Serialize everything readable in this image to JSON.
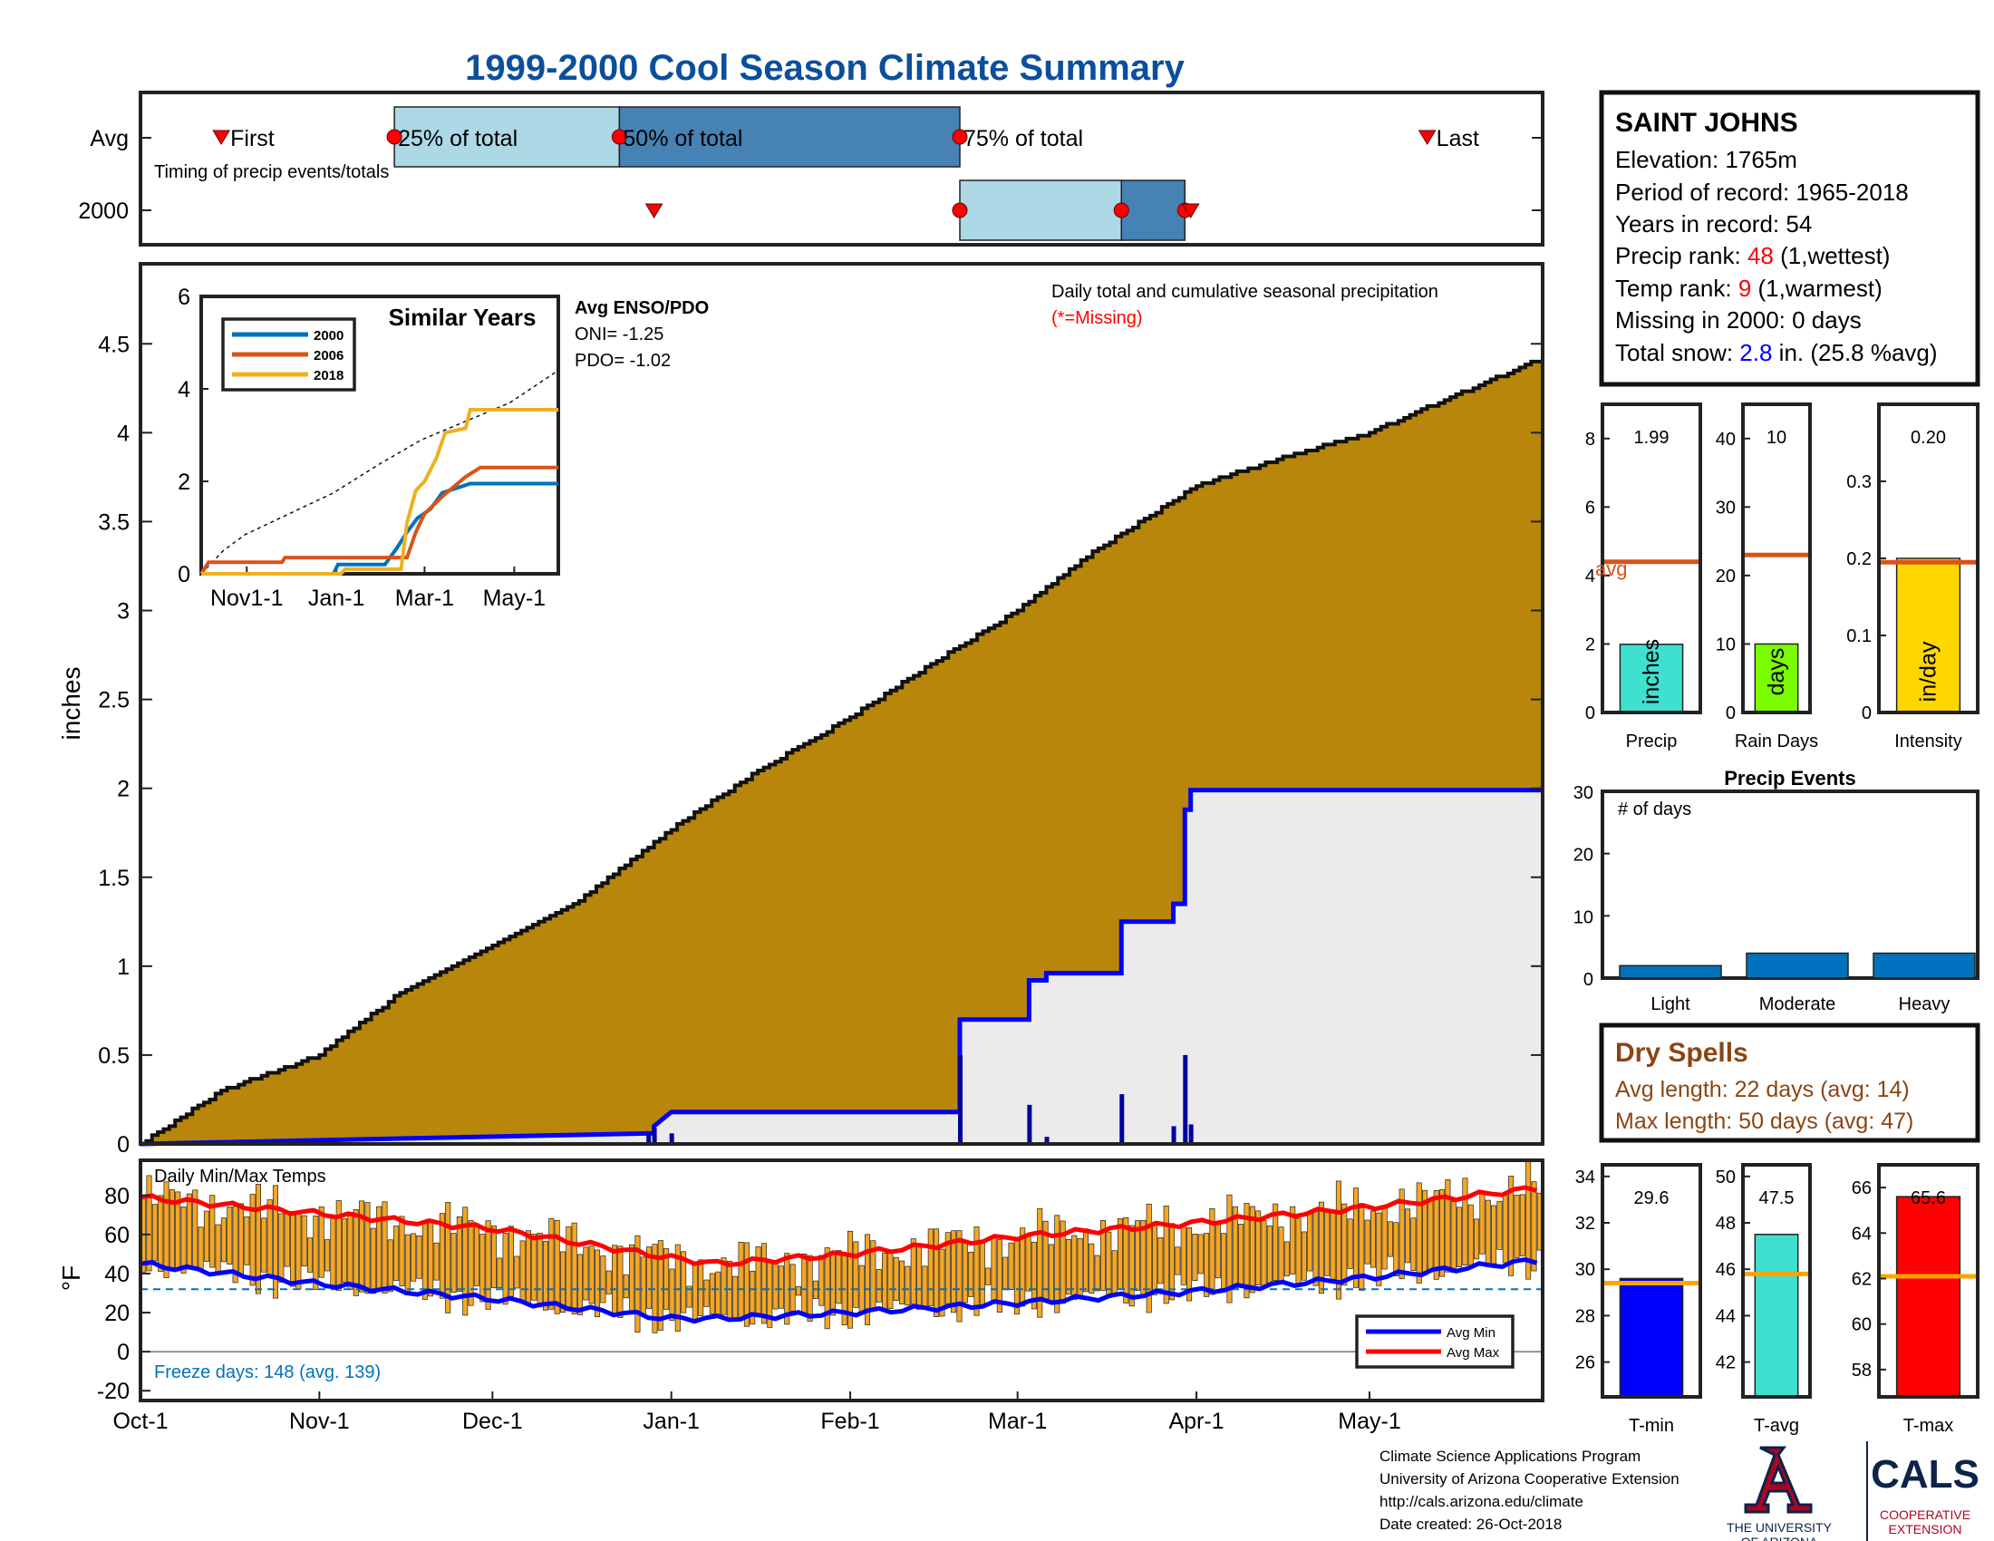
{
  "title": "1999-2000 Cool Season Climate Summary",
  "timing": {
    "row_labels": [
      "Avg",
      "2000"
    ],
    "caption": "Timing of precip events/totals",
    "marker_labels": [
      "First",
      "25% of total",
      "50% of total",
      "75% of total",
      "Last"
    ],
    "avg": {
      "first": "1999-10-15",
      "p25": "1999-11-14",
      "p50": "1999-12-23",
      "p75": "2000-02-20",
      "last": "2000-05-11"
    },
    "y2000": {
      "first": "1999-12-29",
      "p25": "2000-02-20",
      "p50": "2000-03-19",
      "p75": "2000-03-30",
      "last": "2000-03-31"
    }
  },
  "precip": {
    "ylabel": "inches",
    "yticks": [
      "0",
      "0.5",
      "1",
      "1.5",
      "2",
      "2.5",
      "3",
      "3.5",
      "4",
      "4.5"
    ],
    "ylim": [
      0,
      4.95
    ],
    "caption": "Daily total and cumulative seasonal precipitation",
    "missing_note": "(*=Missing)",
    "enso_title": "Avg ENSO/PDO",
    "oni": "ONI= -1.25",
    "pdo": "PDO= -1.02",
    "avg_cumulative": [
      [
        "1999-10-01",
        0.0
      ],
      [
        "1999-10-15",
        0.3
      ],
      [
        "1999-11-01",
        0.5
      ],
      [
        "1999-11-15",
        0.85
      ],
      [
        "1999-12-01",
        1.12
      ],
      [
        "1999-12-15",
        1.35
      ],
      [
        "2000-01-01",
        1.77
      ],
      [
        "2000-01-15",
        2.08
      ],
      [
        "2000-02-01",
        2.4
      ],
      [
        "2000-02-15",
        2.7
      ],
      [
        "2000-03-01",
        3.0
      ],
      [
        "2000-03-15",
        3.35
      ],
      [
        "2000-04-01",
        3.7
      ],
      [
        "2000-04-15",
        3.85
      ],
      [
        "2000-05-01",
        4.0
      ],
      [
        "2000-05-15",
        4.2
      ],
      [
        "2000-05-31",
        4.42
      ]
    ],
    "daily_2000": [
      [
        "1999-12-28",
        0.06
      ],
      [
        "1999-12-29",
        0.09
      ],
      [
        "2000-01-01",
        0.06
      ],
      [
        "2000-02-20",
        0.5
      ],
      [
        "2000-03-03",
        0.22
      ],
      [
        "2000-03-06",
        0.04
      ],
      [
        "2000-03-19",
        0.28
      ],
      [
        "2000-03-28",
        0.1
      ],
      [
        "2000-03-30",
        0.5
      ],
      [
        "2000-03-31",
        0.11
      ]
    ],
    "cumulative_2000": [
      [
        "1999-10-01",
        0.0
      ],
      [
        "1999-12-29",
        0.06
      ],
      [
        "1999-12-29",
        0.1
      ],
      [
        "2000-01-01",
        0.18
      ],
      [
        "2000-02-20",
        0.18
      ],
      [
        "2000-02-20",
        0.7
      ],
      [
        "2000-03-03",
        0.7
      ],
      [
        "2000-03-03",
        0.92
      ],
      [
        "2000-03-06",
        0.92
      ],
      [
        "2000-03-06",
        0.96
      ],
      [
        "2000-03-19",
        0.96
      ],
      [
        "2000-03-19",
        1.25
      ],
      [
        "2000-03-28",
        1.25
      ],
      [
        "2000-03-28",
        1.35
      ],
      [
        "2000-03-30",
        1.35
      ],
      [
        "2000-03-30",
        1.88
      ],
      [
        "2000-03-31",
        1.88
      ],
      [
        "2000-03-31",
        1.99
      ],
      [
        "2000-05-31",
        1.99
      ]
    ]
  },
  "similar": {
    "title": "Similar Years",
    "yticks": [
      "0",
      "2",
      "4",
      "6"
    ],
    "ylim": [
      0,
      6
    ],
    "xticks": [
      "Nov1-1",
      "Jan-1",
      "Mar-1",
      "May-1"
    ],
    "legend": [
      "2000",
      "2006",
      "2018"
    ],
    "colors": [
      "#0072BD",
      "#D95319",
      "#EDB120"
    ],
    "avg_line": [
      [
        0,
        0
      ],
      [
        15,
        0.5
      ],
      [
        30,
        0.85
      ],
      [
        60,
        1.3
      ],
      [
        90,
        1.75
      ],
      [
        120,
        2.35
      ],
      [
        150,
        2.9
      ],
      [
        180,
        3.3
      ],
      [
        210,
        3.7
      ],
      [
        243,
        4.4
      ]
    ],
    "series": [
      [
        [
          0,
          0
        ],
        [
          90,
          0
        ],
        [
          93,
          0.2
        ],
        [
          125,
          0.2
        ],
        [
          133,
          0.55
        ],
        [
          140,
          0.9
        ],
        [
          147,
          1.2
        ],
        [
          156,
          1.4
        ],
        [
          164,
          1.75
        ],
        [
          183,
          1.95
        ],
        [
          243,
          1.95
        ]
      ],
      [
        [
          0,
          0
        ],
        [
          5,
          0.25
        ],
        [
          55,
          0.25
        ],
        [
          57,
          0.35
        ],
        [
          140,
          0.35
        ],
        [
          146,
          0.9
        ],
        [
          152,
          1.3
        ],
        [
          165,
          1.7
        ],
        [
          180,
          2.1
        ],
        [
          190,
          2.3
        ],
        [
          243,
          2.3
        ]
      ],
      [
        [
          0,
          0
        ],
        [
          95,
          0
        ],
        [
          98,
          0.1
        ],
        [
          136,
          0.1
        ],
        [
          140,
          1.1
        ],
        [
          146,
          1.8
        ],
        [
          152,
          2.0
        ],
        [
          160,
          2.5
        ],
        [
          166,
          3.05
        ],
        [
          180,
          3.15
        ],
        [
          183,
          3.55
        ],
        [
          243,
          3.55
        ]
      ]
    ]
  },
  "temps": {
    "caption": "Daily Min/Max Temps",
    "ylabel": "°F",
    "yticks": [
      "-20",
      "0",
      "20",
      "40",
      "60",
      "80"
    ],
    "ylim": [
      -25,
      98
    ],
    "freeze": "Freeze days: 148 (avg. 139)",
    "legend": [
      "Avg Min",
      "Avg Max"
    ],
    "freeze_line": 32,
    "avg_max": [
      [
        0,
        79
      ],
      [
        30,
        71
      ],
      [
        61,
        63
      ],
      [
        92,
        48
      ],
      [
        100,
        45
      ],
      [
        123,
        50
      ],
      [
        152,
        59
      ],
      [
        183,
        66
      ],
      [
        213,
        74
      ],
      [
        243,
        84
      ]
    ],
    "avg_min": [
      [
        0,
        45
      ],
      [
        30,
        35
      ],
      [
        61,
        27
      ],
      [
        92,
        17
      ],
      [
        100,
        17
      ],
      [
        123,
        20
      ],
      [
        152,
        25
      ],
      [
        183,
        31
      ],
      [
        213,
        38
      ],
      [
        243,
        47
      ]
    ],
    "amplitude": 14
  },
  "xaxis": {
    "start": "1999-10-01",
    "end": "2000-05-31",
    "labels": [
      "Oct-1",
      "Nov-1",
      "Dec-1",
      "Jan-1",
      "Feb-1",
      "Mar-1",
      "Apr-1",
      "May-1"
    ],
    "dates": [
      "1999-10-01",
      "1999-11-01",
      "1999-12-01",
      "2000-01-01",
      "2000-02-01",
      "2000-03-01",
      "2000-04-01",
      "2000-05-01"
    ]
  },
  "station": {
    "name": "SAINT JOHNS",
    "elevation": "Elevation: 1765m",
    "period": "Period of record: 1965-2018",
    "years": "Years in record: 54",
    "precip_rank_label": "Precip rank: ",
    "precip_rank": "48",
    "precip_rank_suffix": " (1,wettest)",
    "temp_rank_label": "Temp rank: ",
    "temp_rank": "9",
    "temp_rank_suffix": " (1,warmest)",
    "missing": "Missing in 2000: 0 days",
    "snow_label": "Total snow: ",
    "snow_value": "2.8",
    "snow_suffix": " in. (25.8 %avg)"
  },
  "summary_bars": [
    {
      "label": "Precip",
      "value": 1.99,
      "value_text": "1.99",
      "avg": 4.4,
      "avg_label": "avg",
      "ylim": [
        0,
        9
      ],
      "yticks": [
        0,
        2,
        4,
        6,
        8
      ],
      "tick_labels": [
        "0",
        "2",
        "4",
        "6",
        "8"
      ],
      "color": "#40E0D0",
      "unit": "inches"
    },
    {
      "label": "Rain Days",
      "value": 10,
      "value_text": "10",
      "avg": 23,
      "ylim": [
        0,
        45
      ],
      "yticks": [
        0,
        10,
        20,
        30,
        40
      ],
      "tick_labels": [
        "0",
        "10",
        "20",
        "30",
        "40"
      ],
      "color": "#7CFC00",
      "unit": "days"
    },
    {
      "label": "Intensity",
      "value": 0.2,
      "value_text": "0.20",
      "avg": 0.195,
      "ylim": [
        0,
        0.4
      ],
      "yticks": [
        0,
        0.1,
        0.2,
        0.3
      ],
      "tick_labels": [
        "0",
        "0.1",
        "0.2",
        "0.3"
      ],
      "color": "#FFD700",
      "unit": "in/day"
    }
  ],
  "precip_events": {
    "title": "Precip Events",
    "ylabel_inside": "# of days",
    "categories": [
      "Light",
      "Moderate",
      "Heavy"
    ],
    "values": [
      2,
      4,
      4
    ],
    "ylim": [
      0,
      30
    ],
    "yticks": [
      "0",
      "10",
      "20",
      "30"
    ],
    "color": "#0072BD"
  },
  "dry_spells": {
    "title": "Dry Spells",
    "avg_length": "Avg length: 22 days (avg: 14)",
    "max_length": "Max length: 50 days (avg: 47)"
  },
  "temp_bars": [
    {
      "label": "T-min",
      "value": 29.6,
      "value_text": "29.6",
      "avg": 29.4,
      "ylim": [
        24.5,
        34.5
      ],
      "yticks": [
        26,
        28,
        30,
        32,
        34
      ],
      "tick_labels": [
        "26",
        "28",
        "30",
        "32",
        "34"
      ],
      "color": "#0000FF"
    },
    {
      "label": "T-avg",
      "value": 47.5,
      "value_text": "47.5",
      "avg": 45.8,
      "ylim": [
        40.5,
        50.5
      ],
      "yticks": [
        42,
        44,
        46,
        48,
        50
      ],
      "tick_labels": [
        "42",
        "44",
        "46",
        "48",
        "50"
      ],
      "color": "#40E0D0"
    },
    {
      "label": "T-max",
      "value": 65.6,
      "value_text": "65.6",
      "avg": 62.1,
      "ylim": [
        56.8,
        67
      ],
      "yticks": [
        58,
        60,
        62,
        64,
        66
      ],
      "tick_labels": [
        "58",
        "60",
        "62",
        "64",
        "66"
      ],
      "color": "#FF0000"
    }
  ],
  "credits": [
    "Climate Science Applications Program",
    "University of Arizona Cooperative Extension",
    "http://cals.arizona.edu/climate",
    " Date created: 26-Oct-2018"
  ],
  "logo": {
    "ua_line1": "THE UNIVERSITY",
    "ua_line2": "OF ARIZONA",
    "cals": "CALS",
    "coop1": "COOPERATIVE",
    "coop2": "EXTENSION"
  },
  "colors": {
    "title": "#0B4F9C",
    "precip_fill": "#B8860B",
    "gray_fill": "#EBEBEB",
    "cum2000": "#0000FF",
    "box_light": "#ADD8E6",
    "box_dark": "#4682B4",
    "marker": "#FF0000",
    "avg_line": "#D95319",
    "temp_bar": "#F5A623",
    "rank_red": "#FF0000",
    "snow_blue": "#0000FF",
    "dry_brown": "#8B4513",
    "temp_avg_line": "#FFA500",
    "freeze_line": "#0072BD",
    "ua_red": "#AB0520",
    "ua_blue": "#0C234B"
  }
}
